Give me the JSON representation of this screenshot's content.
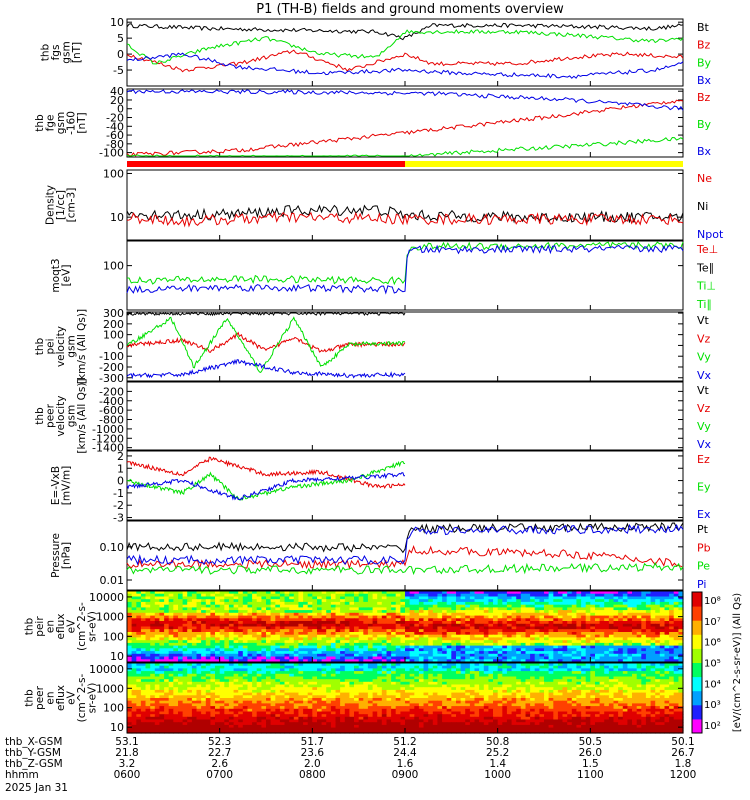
{
  "title": "P1 (TH-B) fields and ground moments overview",
  "colors": {
    "black": "#000000",
    "red": "#e60000",
    "green": "#00e000",
    "blue": "#0000e6",
    "yellow": "#ffff00",
    "bar_red": "#ff0000"
  },
  "chart_data": [
    {
      "type": "line",
      "ylabel": [
        "thb",
        "fgs",
        "gsm",
        "[nT]"
      ],
      "ylim": [
        -10,
        11
      ],
      "ticks": [
        "10",
        "5",
        "0",
        "-5"
      ],
      "tick_values": [
        10,
        5,
        0,
        -5
      ],
      "legend": [
        "Bt",
        "Bz",
        "By",
        "Bx"
      ],
      "legend_colors": [
        "black",
        "red",
        "green",
        "blue"
      ],
      "series_approx": {
        "Bt": [
          [
            0,
            9
          ],
          [
            0.15,
            8
          ],
          [
            0.3,
            7.5
          ],
          [
            0.45,
            7
          ],
          [
            0.5,
            5
          ],
          [
            0.55,
            9
          ],
          [
            0.7,
            9
          ],
          [
            0.85,
            8.5
          ],
          [
            0.95,
            8
          ],
          [
            1,
            9
          ]
        ],
        "Bz": [
          [
            0,
            0
          ],
          [
            0.1,
            -5
          ],
          [
            0.2,
            -3
          ],
          [
            0.3,
            1
          ],
          [
            0.4,
            -5
          ],
          [
            0.5,
            0
          ],
          [
            0.55,
            -3
          ],
          [
            0.7,
            -3
          ],
          [
            0.8,
            -1
          ],
          [
            0.9,
            0
          ],
          [
            1,
            -1
          ]
        ],
        "By": [
          [
            0,
            3
          ],
          [
            0.05,
            -3
          ],
          [
            0.15,
            2
          ],
          [
            0.25,
            5
          ],
          [
            0.35,
            0
          ],
          [
            0.45,
            -1
          ],
          [
            0.5,
            7
          ],
          [
            0.7,
            7
          ],
          [
            0.8,
            6
          ],
          [
            0.95,
            4
          ],
          [
            1,
            5
          ]
        ],
        "Bx": [
          [
            0,
            -2
          ],
          [
            0.1,
            0
          ],
          [
            0.2,
            -4
          ],
          [
            0.35,
            -6
          ],
          [
            0.5,
            -5
          ],
          [
            0.6,
            -6
          ],
          [
            0.8,
            -7
          ],
          [
            0.95,
            -5
          ],
          [
            1,
            -3
          ]
        ]
      }
    },
    {
      "type": "line",
      "ylabel": [
        "thb",
        "fge",
        "gsm",
        "-160",
        "[nT]"
      ],
      "ylim": [
        -110,
        45
      ],
      "ticks": [
        "40",
        "20",
        "0",
        "-20",
        "-40",
        "-60",
        "-80",
        "-100"
      ],
      "tick_values": [
        40,
        20,
        0,
        -20,
        -40,
        -60,
        -80,
        -100
      ],
      "legend": [
        "Bz",
        "By",
        "Bx"
      ],
      "legend_colors": [
        "red",
        "green",
        "blue"
      ],
      "series_approx": {
        "Bz": [
          [
            0,
            -105
          ],
          [
            0.2,
            -95
          ],
          [
            0.5,
            -55
          ],
          [
            0.75,
            -20
          ],
          [
            1,
            20
          ]
        ],
        "By": [
          [
            0,
            -110
          ],
          [
            0.5,
            -110
          ],
          [
            0.6,
            -100
          ],
          [
            0.8,
            -85
          ],
          [
            1,
            -68
          ]
        ],
        "Bx": [
          [
            0,
            40
          ],
          [
            0.3,
            38
          ],
          [
            0.55,
            35
          ],
          [
            0.8,
            20
          ],
          [
            1,
            0
          ]
        ]
      },
      "mode_bar": [
        {
          "to": 0.5,
          "color": "bar_red"
        },
        {
          "to": 1,
          "color": "yellow"
        }
      ]
    },
    {
      "type": "line",
      "log": true,
      "ylabel": [
        "Density",
        "[1/cc]",
        "[cm-3]"
      ],
      "ylim": [
        3,
        120
      ],
      "ticks": [
        "100",
        "10"
      ],
      "tick_values": [
        100,
        10
      ],
      "legend": [
        "Ne",
        "Ni",
        "Npot"
      ],
      "legend_colors": [
        "red",
        "black",
        "blue"
      ],
      "series_approx": {
        "Ni": [
          [
            0,
            12
          ],
          [
            0.1,
            11
          ],
          [
            0.2,
            12
          ],
          [
            0.3,
            14
          ],
          [
            0.45,
            15
          ],
          [
            0.5,
            11
          ],
          [
            0.7,
            10
          ],
          [
            1,
            10
          ]
        ],
        "Ne": [
          [
            0,
            10
          ],
          [
            0.1,
            8
          ],
          [
            0.2,
            9
          ],
          [
            0.3,
            10
          ],
          [
            0.5,
            9
          ],
          [
            0.7,
            9
          ],
          [
            1,
            9
          ]
        ]
      }
    },
    {
      "type": "line",
      "log": true,
      "ylabel": [
        "moqt3",
        "[eV]"
      ],
      "ylim": [
        3,
        700
      ],
      "ticks": [
        "100"
      ],
      "tick_values": [
        100
      ],
      "legend": [
        "Te⊥",
        "Te∥",
        "Ti⊥",
        "Ti∥"
      ],
      "legend_colors": [
        "red",
        "black",
        "green",
        "green"
      ],
      "series_approx": {
        "Ti_perp": [
          [
            0,
            30
          ],
          [
            0.2,
            35
          ],
          [
            0.5,
            30
          ],
          [
            0.51,
            450
          ],
          [
            1,
            500
          ]
        ],
        "Te": [
          [
            0,
            15
          ],
          [
            0.2,
            18
          ],
          [
            0.5,
            15
          ],
          [
            0.51,
            350
          ],
          [
            1,
            380
          ]
        ]
      }
    },
    {
      "type": "line",
      "ylabel": [
        "thb",
        "pei",
        "velocity",
        "gsm",
        "[km/s (All Qs)]"
      ],
      "ylim": [
        -330,
        310
      ],
      "ticks": [
        "300",
        "200",
        "100",
        "0",
        "-100",
        "-200",
        "-300"
      ],
      "tick_values": [
        300,
        200,
        100,
        0,
        -100,
        -200,
        -300
      ],
      "legend": [
        "Vt",
        "Vz",
        "Vy",
        "Vx"
      ],
      "legend_colors": [
        "black",
        "red",
        "green",
        "blue"
      ],
      "series_approx": {
        "Vt": [
          [
            0,
            300
          ],
          [
            0.5,
            300
          ]
        ],
        "Vz": [
          [
            0,
            0
          ],
          [
            0.1,
            50
          ],
          [
            0.15,
            -50
          ],
          [
            0.2,
            100
          ],
          [
            0.25,
            -50
          ],
          [
            0.3,
            80
          ],
          [
            0.35,
            -60
          ],
          [
            0.4,
            10
          ],
          [
            0.5,
            10
          ]
        ],
        "Vy": [
          [
            0,
            0
          ],
          [
            0.08,
            250
          ],
          [
            0.12,
            -200
          ],
          [
            0.18,
            250
          ],
          [
            0.24,
            -250
          ],
          [
            0.3,
            250
          ],
          [
            0.35,
            -200
          ],
          [
            0.4,
            10
          ],
          [
            0.5,
            20
          ]
        ],
        "Vx": [
          [
            0,
            -280
          ],
          [
            0.1,
            -270
          ],
          [
            0.2,
            -150
          ],
          [
            0.3,
            -250
          ],
          [
            0.4,
            -280
          ],
          [
            0.5,
            -270
          ]
        ]
      }
    },
    {
      "type": "line",
      "ylabel": [
        "thb",
        "peer",
        "velocity",
        "gsm",
        "[km/s (All Qs)]"
      ],
      "ylim": [
        -1450,
        0
      ],
      "ticks": [
        "-200",
        "-400",
        "-600",
        "-800",
        "-1000",
        "-1200",
        "-1400"
      ],
      "tick_values": [
        -200,
        -400,
        -600,
        -800,
        -1000,
        -1200,
        -1400
      ],
      "legend": [
        "Vt",
        "Vz",
        "Vy",
        "Vx"
      ],
      "legend_colors": [
        "black",
        "red",
        "green",
        "blue"
      ],
      "series_approx": {}
    },
    {
      "type": "line",
      "ylabel": [
        "E=-VxB",
        "[mV/m]"
      ],
      "ylim": [
        -3.2,
        2.4
      ],
      "ticks": [
        "2",
        "1",
        "0",
        "-1",
        "-2",
        "-3"
      ],
      "tick_values": [
        2,
        1,
        0,
        -1,
        -2,
        -3
      ],
      "legend": [
        "Ez",
        "Ey",
        "Ex"
      ],
      "legend_colors": [
        "red",
        "green",
        "blue"
      ],
      "series_approx": {
        "Ez": [
          [
            0,
            1.5
          ],
          [
            0.1,
            0.5
          ],
          [
            0.15,
            1.8
          ],
          [
            0.25,
            0.5
          ],
          [
            0.35,
            0.7
          ],
          [
            0.45,
            -0.5
          ],
          [
            0.55,
            -0.2
          ],
          [
            0.7,
            -0.5
          ],
          [
            0.75,
            0.5
          ],
          [
            0.5,
            1.5
          ]
        ],
        "Ey": [
          [
            0,
            0
          ],
          [
            0.1,
            -1
          ],
          [
            0.15,
            0.5
          ],
          [
            0.2,
            -1.5
          ],
          [
            0.3,
            -0.5
          ],
          [
            0.4,
            0
          ],
          [
            0.5,
            1.5
          ]
        ],
        "Ex": [
          [
            0,
            -0.5
          ],
          [
            0.1,
            0
          ],
          [
            0.2,
            -1.5
          ],
          [
            0.3,
            0
          ],
          [
            0.4,
            0.2
          ],
          [
            0.5,
            0.5
          ]
        ]
      }
    },
    {
      "type": "line",
      "log": true,
      "ylabel": [
        "Pressure",
        "[nPa]"
      ],
      "ylim": [
        0.005,
        0.6
      ],
      "ticks": [
        "0.10",
        "0.01"
      ],
      "tick_values": [
        0.1,
        0.01
      ],
      "legend": [
        "Pt",
        "Pb",
        "Pe",
        "Pi"
      ],
      "legend_colors": [
        "black",
        "red",
        "green",
        "blue"
      ],
      "series_approx": {
        "Pt": [
          [
            0,
            0.1
          ],
          [
            0.3,
            0.1
          ],
          [
            0.5,
            0.09
          ],
          [
            0.51,
            0.35
          ],
          [
            1,
            0.4
          ]
        ],
        "Pb": [
          [
            0,
            0.03
          ],
          [
            0.5,
            0.03
          ],
          [
            0.51,
            0.08
          ],
          [
            0.8,
            0.06
          ],
          [
            1,
            0.03
          ]
        ],
        "Pe": [
          [
            0,
            0.02
          ],
          [
            0.5,
            0.02
          ],
          [
            0.51,
            0.02
          ],
          [
            1,
            0.025
          ]
        ],
        "Pi": [
          [
            0,
            0.04
          ],
          [
            0.5,
            0.04
          ],
          [
            0.51,
            0.3
          ],
          [
            1,
            0.35
          ]
        ]
      }
    },
    {
      "type": "heatmap",
      "log": true,
      "ylabel": [
        "thb",
        "peir",
        "en",
        "eflux",
        "eV",
        "(cm^2-s-",
        "sr-eV)"
      ],
      "ylim": [
        5,
        20000
      ],
      "ticks": [
        "10000",
        "1000",
        "100",
        "10"
      ],
      "tick_values": [
        10000,
        1000,
        100,
        10
      ]
    },
    {
      "type": "heatmap",
      "log": true,
      "ylabel": [
        "thb",
        "peer",
        "en",
        "eflux",
        "eV",
        "(cm^2-s-",
        "sr-eV)"
      ],
      "ylim": [
        5,
        20000
      ],
      "ticks": [
        "10000",
        "1000",
        "100",
        "10"
      ],
      "tick_values": [
        10000,
        1000,
        100,
        10
      ]
    }
  ],
  "colorbar": {
    "labels": [
      "10⁸",
      "10⁷",
      "10⁶",
      "10⁵",
      "10⁴",
      "10³",
      "10²"
    ],
    "title": "[eV/(cm^2-s-sr-eV)] (All Qs)"
  },
  "x_axis": {
    "rows": [
      {
        "label": "thb_X-GSM",
        "values": [
          "53.1",
          "52.3",
          "51.7",
          "51.2",
          "50.8",
          "50.5",
          "50.1"
        ]
      },
      {
        "label": "thb_Y-GSM",
        "values": [
          "21.8",
          "22.7",
          "23.6",
          "24.4",
          "25.2",
          "26.0",
          "26.7"
        ]
      },
      {
        "label": "thb_Z-GSM",
        "values": [
          "3.2",
          "2.6",
          "2.0",
          "1.6",
          "1.4",
          "1.5",
          "1.8"
        ]
      },
      {
        "label": "hhmm",
        "values": [
          "0600",
          "0700",
          "0800",
          "0900",
          "1000",
          "1100",
          "1200"
        ]
      }
    ],
    "date": "2025 Jan 31"
  }
}
